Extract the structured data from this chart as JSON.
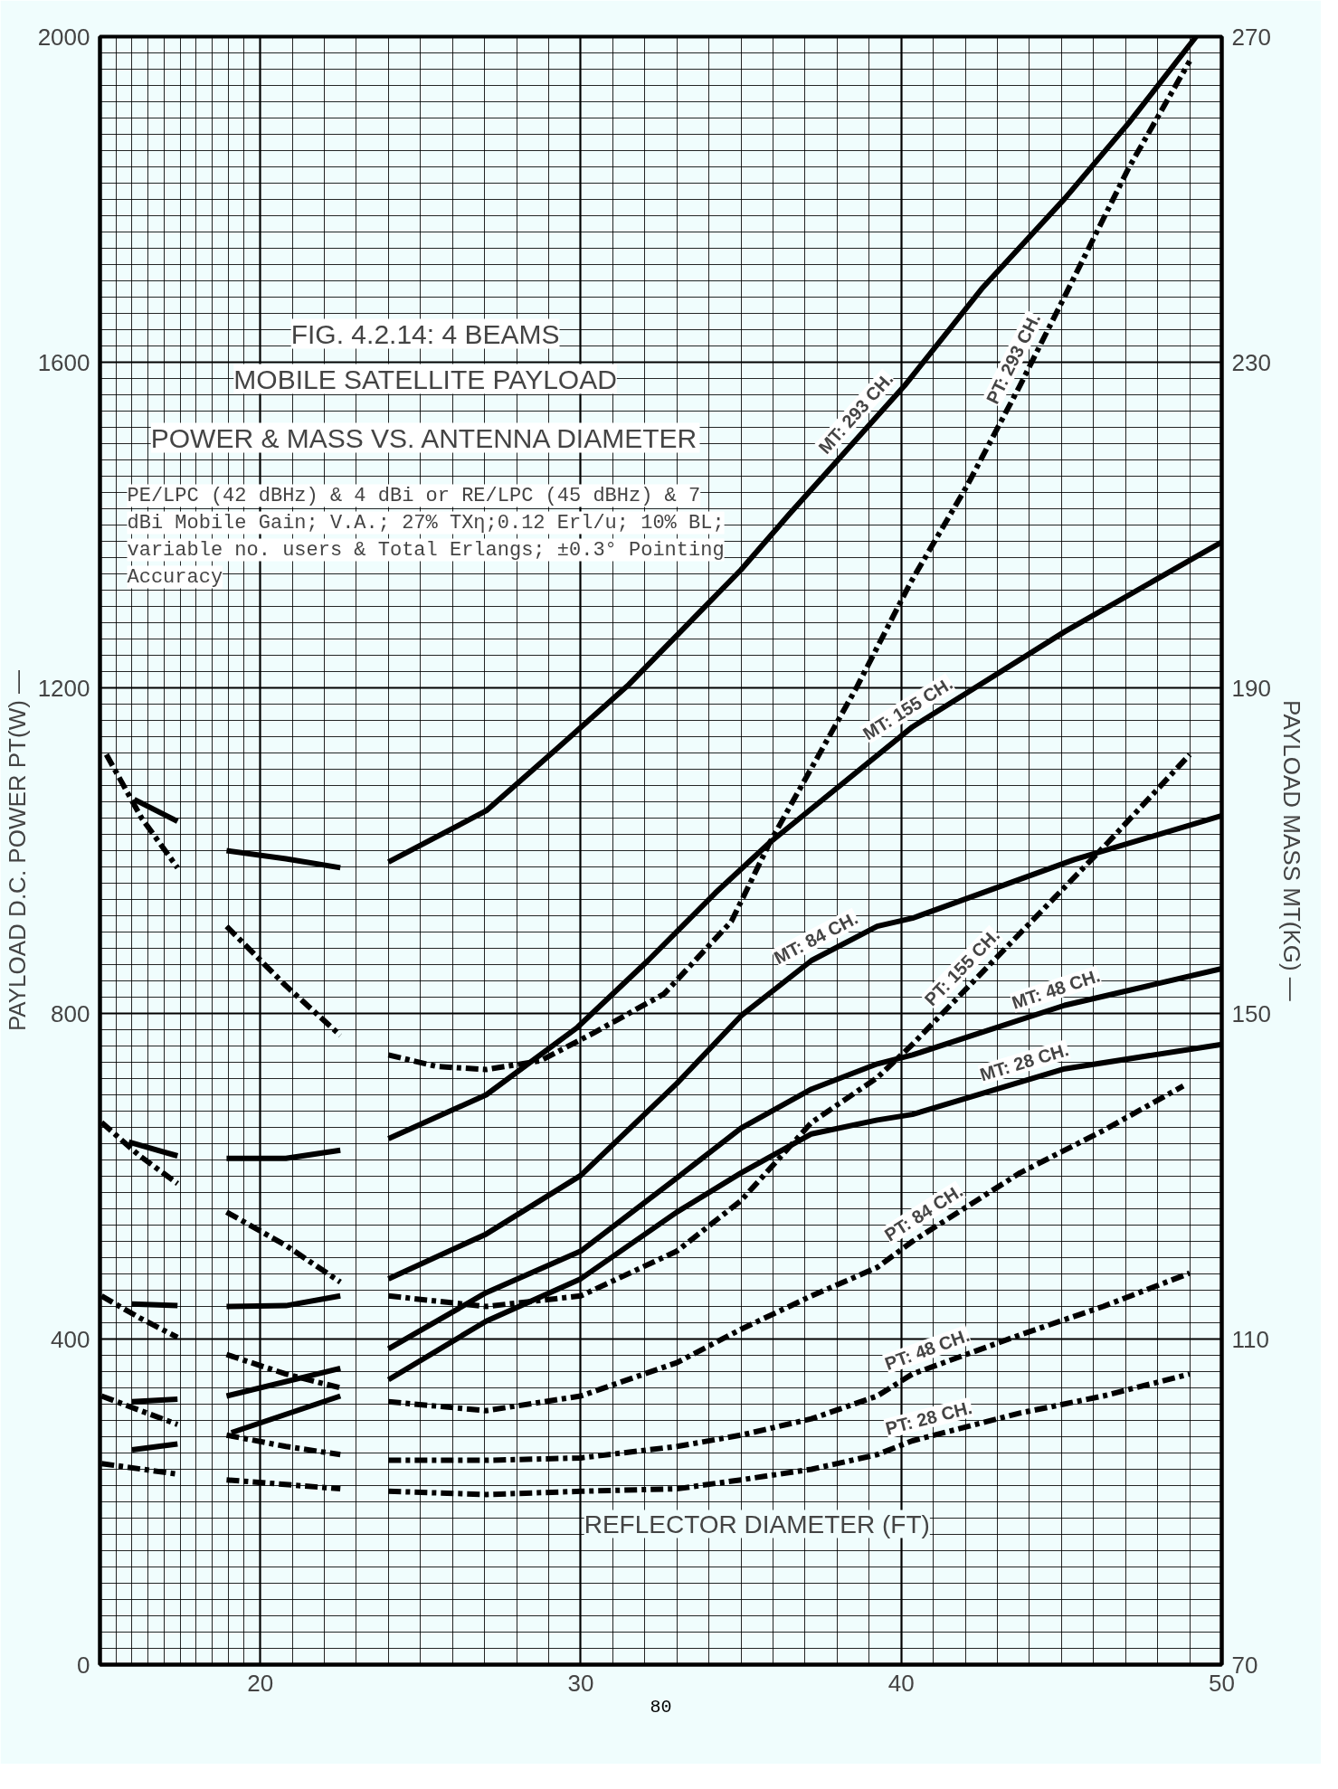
{
  "chart_data": {
    "type": "line",
    "title": "FIG. 4.2.14: 4 BEAMS",
    "subtitle": "MOBILE SATELLITE PAYLOAD",
    "xlabel": "REFLECTOR DIAMETER (FT)",
    "ylabel": "PAYLOAD D.C. POWER PT(W) —",
    "y2label": "PAYLOAD MASS MT(KG) —",
    "annotations": [
      "POWER & MASS VS. ANTENNA DIAMETER",
      "PE/LPC (42 dBHz) & 4 dBi or RE/LPC (45 dBHz) & 7 dBi Mobile Gain; V.A.; 27% TXη;0.12 Erl/u; 10% BL; variable no. users & Total Erlangs; ±0.3° Pointing Accuracy",
      "80"
    ],
    "xlim": [
      15,
      50
    ],
    "xticks": [
      {
        "value": 15,
        "label": null
      },
      20,
      30,
      40,
      50
    ],
    "ylim": [
      0,
      2000
    ],
    "yticks": [
      0,
      400,
      800,
      1200,
      1600,
      2000
    ],
    "y2lim": [
      70,
      270
    ],
    "y2ticks": [
      70,
      110,
      150,
      190,
      230,
      270
    ],
    "grid": true,
    "marker": "none",
    "series": [
      {
        "name": "MT: 293 CH.",
        "color": "#000000",
        "axis": "y2",
        "line_style": "solid",
        "x": [
          24.0,
          27.05,
          29.25,
          31.5,
          35.0,
          36.5,
          40.1,
          42.55,
          45.1,
          47.1,
          49.2
        ],
        "values": [
          168.6,
          174.9,
          182.5,
          190.4,
          204.5,
          211.3,
          227.1,
          239.2,
          250.1,
          259.4,
          270
        ]
      },
      {
        "name": "PT: 293 CH.",
        "color": "#000000",
        "line_style": "dashed",
        "x": [
          24.0,
          25.5,
          27.05,
          28.75,
          30.4,
          32.6,
          34.7,
          35.9,
          38.6,
          40.3,
          42.05,
          43.7,
          45.1,
          47.1,
          49.0
        ],
        "values": [
          749,
          735,
          731,
          742,
          776,
          824,
          913,
          1010,
          1200,
          1330,
          1448,
          1571,
          1681,
          1839,
          1970
        ]
      },
      {
        "name": "MT: 155 CH.",
        "color": "#000000",
        "axis": "y2",
        "line_style": "solid",
        "x": [
          24.0,
          27.05,
          29.9,
          32.1,
          34.2,
          35.9,
          40.35,
          45.1,
          50.0
        ],
        "values": [
          134.6,
          140.0,
          148.3,
          156.5,
          164.8,
          171.0,
          185.2,
          196.9,
          207.9
        ]
      },
      {
        "name": "MT: 84 CH.",
        "color": "#000000",
        "axis": "y2",
        "line_style": "solid",
        "x": [
          24.0,
          27.05,
          30.0,
          33.0,
          35.0,
          37.2,
          39.25,
          40.35,
          45.4,
          50.0
        ],
        "values": [
          117.4,
          122.9,
          130.1,
          141.4,
          149.7,
          156.5,
          160.7,
          161.7,
          168.9,
          174.3
        ]
      },
      {
        "name": "PT: 155 CH.",
        "color": "#000000",
        "line_style": "dashed",
        "x": [
          24.0,
          27.05,
          30.0,
          33.0,
          35.0,
          37.2,
          39.25,
          40.35,
          43.4,
          46.45,
          49.0
        ],
        "values": [
          453,
          440,
          453,
          508,
          570,
          666,
          721,
          762,
          886,
          1010,
          1118
        ]
      },
      {
        "name": "MT: 48 CH.",
        "color": "#000000",
        "axis": "y2",
        "line_style": "solid",
        "x": [
          24.0,
          27.05,
          30.0,
          33.0,
          35.0,
          37.2,
          39.25,
          40.35,
          45.1,
          50.0
        ],
        "values": [
          108.8,
          115.7,
          120.8,
          129.8,
          135.9,
          140.7,
          143.8,
          144.9,
          151.0,
          155.5
        ]
      },
      {
        "name": "MT: 28 CH.",
        "color": "#000000",
        "axis": "y2",
        "line_style": "solid",
        "x": [
          24.0,
          27.05,
          30.0,
          33.0,
          35.0,
          37.2,
          39.25,
          40.35,
          45.1,
          50.0
        ],
        "values": [
          105.0,
          112.2,
          117.4,
          125.6,
          130.4,
          135.2,
          136.9,
          137.6,
          143.2,
          146.2
        ]
      },
      {
        "name": "PT: 84 CH.",
        "color": "#000000",
        "line_style": "dashed",
        "x": [
          24.0,
          27.05,
          30.0,
          33.0,
          35.0,
          37.2,
          39.25,
          40.35,
          43.7,
          46.3,
          48.8
        ],
        "values": [
          323,
          312,
          330,
          371,
          412,
          453,
          488,
          520,
          604,
          656,
          711
        ]
      },
      {
        "name": "PT: 48 CH.",
        "color": "#000000",
        "line_style": "dashed",
        "x": [
          24.0,
          27.05,
          30.0,
          33.0,
          35.0,
          37.2,
          39.25,
          40.35,
          43.7,
          46.3,
          49.0
        ],
        "values": [
          251,
          251,
          254,
          268,
          282,
          302,
          330,
          357,
          405,
          440,
          481
        ]
      },
      {
        "name": "PT: 28 CH.",
        "color": "#000000",
        "line_style": "dashed",
        "x": [
          24.0,
          27.05,
          30.0,
          33.0,
          35.0,
          37.2,
          39.25,
          40.35,
          43.7,
          46.3,
          49.0
        ],
        "values": [
          213,
          209,
          213,
          216,
          227,
          240,
          258,
          275,
          309,
          330,
          357
        ]
      },
      {
        "color": "#000000",
        "axis": "y2",
        "line_style": "solid",
        "x": [
          16.07,
          17.42
        ],
        "values": [
          176.3,
          173.6
        ]
      },
      {
        "color": "#000000",
        "axis": "y2",
        "line_style": "solid",
        "x": [
          18.95,
          20.8,
          22.5
        ],
        "values": [
          170.0,
          169.0,
          167.9
        ]
      },
      {
        "color": "#000000",
        "axis": "y2",
        "line_style": "solid",
        "x": [
          15.9,
          17.42
        ],
        "values": [
          134.2,
          132.5
        ]
      },
      {
        "color": "#000000",
        "axis": "y2",
        "line_style": "solid",
        "x": [
          18.95,
          20.8,
          22.5
        ],
        "values": [
          132.2,
          132.2,
          133.2
        ]
      },
      {
        "color": "#000000",
        "axis": "y2",
        "line_style": "solid",
        "x": [
          16.0,
          17.42
        ],
        "values": [
          114.3,
          114.1
        ]
      },
      {
        "color": "#000000",
        "axis": "y2",
        "line_style": "solid",
        "x": [
          18.95,
          20.8,
          22.5
        ],
        "values": [
          114.0,
          114.1,
          115.3
        ]
      },
      {
        "color": "#000000",
        "axis": "y2",
        "line_style": "solid",
        "x": [
          18.95,
          22.5
        ],
        "values": [
          103.0,
          106.4
        ]
      },
      {
        "color": "#000000",
        "axis": "y2",
        "line_style": "solid",
        "x": [
          19.1,
          22.5
        ],
        "values": [
          98.5,
          103.0
        ]
      },
      {
        "color": "#000000",
        "axis": "y2",
        "line_style": "solid",
        "x": [
          16.0,
          17.42
        ],
        "values": [
          102.3,
          102.6
        ]
      },
      {
        "color": "#000000",
        "axis": "y2",
        "line_style": "solid",
        "x": [
          16.0,
          17.42
        ],
        "values": [
          96.4,
          97.1
        ]
      },
      {
        "color": "#000000",
        "line_style": "dashed",
        "x": [
          15.2,
          16.3,
          17.42
        ],
        "values": [
          1118,
          1040,
          979
        ]
      },
      {
        "color": "#000000",
        "line_style": "dashed",
        "x": [
          18.95,
          20.8,
          22.5
        ],
        "values": [
          907,
          834,
          773
        ]
      },
      {
        "color": "#000000",
        "line_style": "dashed",
        "x": [
          15.05,
          16.24,
          17.42
        ],
        "values": [
          666,
          625,
          591
        ]
      },
      {
        "color": "#000000",
        "line_style": "dashed",
        "x": [
          18.95,
          20.8,
          22.5
        ],
        "values": [
          556,
          515,
          470
        ]
      },
      {
        "color": "#000000",
        "line_style": "dashed",
        "x": [
          15.05,
          16.24,
          17.42
        ],
        "values": [
          453,
          426,
          402
        ]
      },
      {
        "color": "#000000",
        "line_style": "dashed",
        "x": [
          18.95,
          20.8,
          22.5
        ],
        "values": [
          381,
          357,
          340
        ]
      },
      {
        "color": "#000000",
        "line_style": "dashed",
        "x": [
          18.95,
          20.8,
          22.5
        ],
        "values": [
          282,
          268,
          258
        ]
      },
      {
        "color": "#000000",
        "line_style": "dashed",
        "x": [
          18.95,
          22.5
        ],
        "values": [
          227,
          216
        ]
      },
      {
        "color": "#000000",
        "line_style": "dashed",
        "x": [
          15.05,
          17.42
        ],
        "values": [
          330,
          295
        ]
      },
      {
        "color": "#000000",
        "line_style": "dashed",
        "x": [
          15.05,
          17.42
        ],
        "values": [
          247,
          234
        ]
      }
    ]
  }
}
